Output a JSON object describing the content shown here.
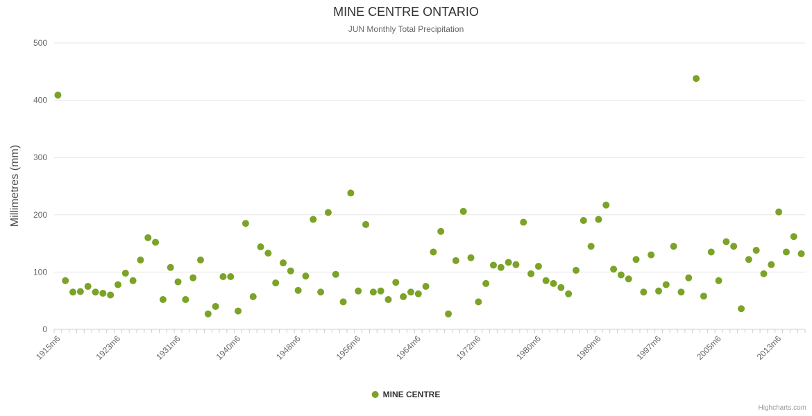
{
  "credits": "Highcharts.com",
  "chart_data": {
    "type": "scatter",
    "title": "MINE CENTRE ONTARIO",
    "subtitle": "JUN Monthly Total Precipitation",
    "xlabel": "",
    "ylabel": "Millimetres (mm)",
    "ylim": [
      0,
      500
    ],
    "yticks": [
      0,
      100,
      200,
      300,
      400,
      500
    ],
    "x_tick_interval": 8,
    "grid": "horizontal",
    "legend_position": "bottom",
    "series_name": "MINE CENTRE",
    "series_color": "#7aa327",
    "categories": [
      "1915m6",
      "1916m6",
      "1917m6",
      "1918m6",
      "1919m6",
      "1920m6",
      "1921m6",
      "1922m6",
      "1923m6",
      "1924m6",
      "1925m6",
      "1926m6",
      "1927m6",
      "1928m6",
      "1929m6",
      "1930m6",
      "1931m6",
      "1932m6",
      "1933m6",
      "1934m6",
      "1935m6",
      "1936m6",
      "1937m6",
      "1939m6",
      "1940m6",
      "1941m6",
      "1942m6",
      "1943m6",
      "1944m6",
      "1945m6",
      "1946m6",
      "1947m6",
      "1948m6",
      "1949m6",
      "1950m6",
      "1951m6",
      "1952m6",
      "1953m6",
      "1954m6",
      "1955m6",
      "1956m6",
      "1957m6",
      "1958m6",
      "1959m6",
      "1960m6",
      "1961m6",
      "1962m6",
      "1963m6",
      "1964m6",
      "1965m6",
      "1966m6",
      "1967m6",
      "1968m6",
      "1969m6",
      "1970m6",
      "1971m6",
      "1972m6",
      "1973m6",
      "1974m6",
      "1975m6",
      "1976m6",
      "1977m6",
      "1978m6",
      "1979m6",
      "1980m6",
      "1981m6",
      "1982m6",
      "1983m6",
      "1985m6",
      "1986m6",
      "1987m6",
      "1988m6",
      "1989m6",
      "1990m6",
      "1991m6",
      "1992m6",
      "1993m6",
      "1994m6",
      "1995m6",
      "1996m6",
      "1997m6",
      "1998m6",
      "1999m6",
      "2000m6",
      "2001m6",
      "2002m6",
      "2003m6",
      "2004m6",
      "2005m6",
      "2006m6",
      "2007m6",
      "2008m6",
      "2009m6",
      "2010m6",
      "2011m6",
      "2012m6",
      "2013m6",
      "2014m6",
      "2015m6",
      "2016m6"
    ],
    "values": [
      409,
      85,
      65,
      66,
      75,
      65,
      63,
      60,
      78,
      98,
      85,
      121,
      160,
      152,
      52,
      108,
      83,
      52,
      90,
      121,
      27,
      40,
      92,
      92,
      32,
      185,
      57,
      144,
      133,
      81,
      116,
      102,
      68,
      93,
      192,
      65,
      204,
      96,
      48,
      238,
      67,
      183,
      65,
      67,
      52,
      82,
      57,
      65,
      62,
      75,
      135,
      171,
      27,
      120,
      206,
      125,
      48,
      80,
      112,
      108,
      117,
      113,
      187,
      97,
      110,
      85,
      80,
      73,
      62,
      103,
      190,
      145,
      192,
      217,
      105,
      95,
      88,
      122,
      65,
      130,
      67,
      78,
      145,
      65,
      90,
      438,
      58,
      135,
      85,
      153,
      145,
      36,
      122,
      138,
      97,
      113,
      205,
      135,
      162,
      132
    ]
  }
}
